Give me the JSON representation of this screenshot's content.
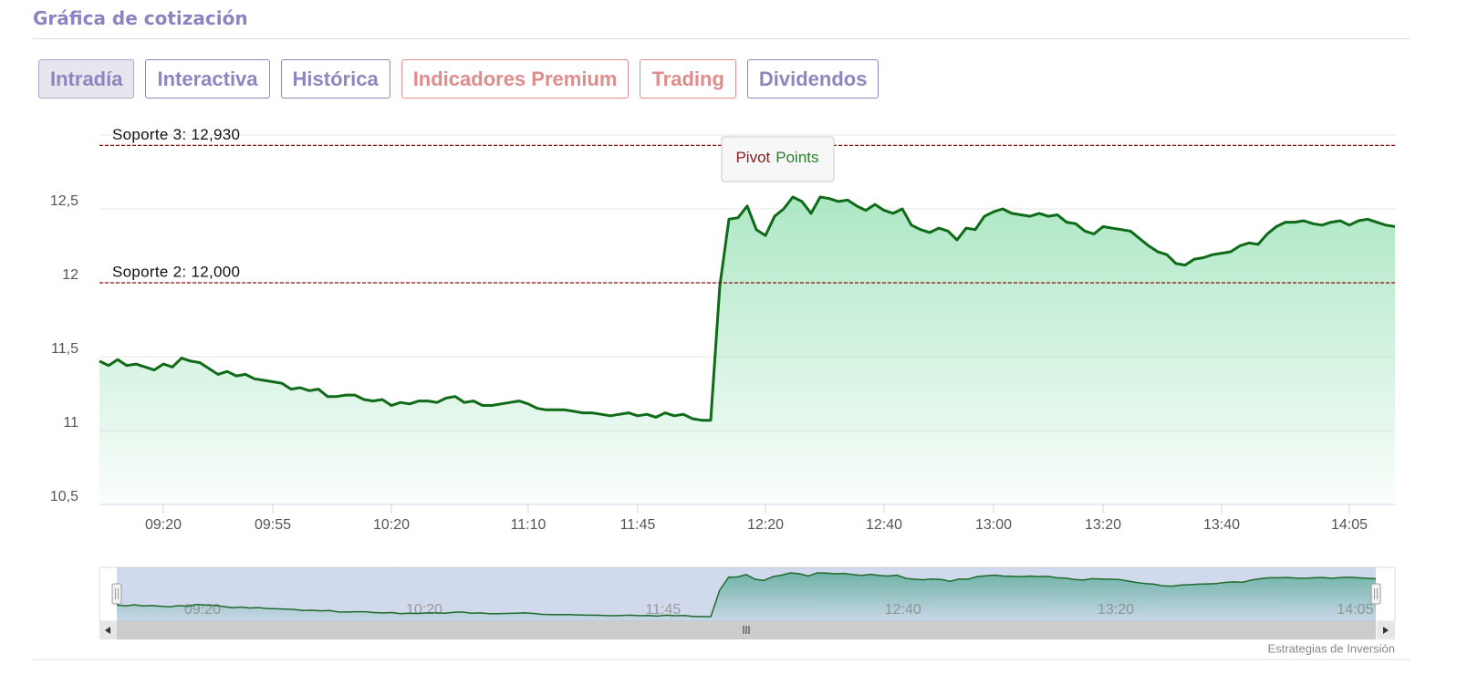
{
  "header": {
    "title": "Gráfica de cotización"
  },
  "tabs": [
    {
      "label": "Intradía",
      "color": "#8f86bf",
      "active": true
    },
    {
      "label": "Interactiva",
      "color": "#8f86bf",
      "active": false
    },
    {
      "label": "Histórica",
      "color": "#8f86bf",
      "active": false
    },
    {
      "label": "Indicadores Premium",
      "color": "#e08c8c",
      "active": false
    },
    {
      "label": "Trading",
      "color": "#e08c8c",
      "active": false
    },
    {
      "label": "Dividendos",
      "color": "#8f86bf",
      "active": false
    }
  ],
  "chart_data": {
    "type": "area",
    "categories": [
      null,
      null,
      null,
      null,
      null,
      null,
      null,
      "09:20",
      null,
      null,
      null,
      null,
      null,
      null,
      null,
      null,
      null,
      null,
      null,
      "09:55",
      null,
      null,
      null,
      null,
      null,
      null,
      null,
      null,
      null,
      null,
      null,
      null,
      "10:20",
      null,
      null,
      null,
      null,
      null,
      null,
      null,
      null,
      null,
      null,
      null,
      null,
      null,
      null,
      "11:10",
      null,
      null,
      null,
      null,
      null,
      null,
      null,
      null,
      null,
      null,
      null,
      "11:45",
      null,
      null,
      null,
      null,
      null,
      null,
      null,
      null,
      null,
      null,
      null,
      null,
      null,
      "12:20",
      null,
      null,
      null,
      null,
      null,
      null,
      null,
      null,
      null,
      null,
      null,
      null,
      "12:40",
      null,
      null,
      null,
      null,
      null,
      null,
      null,
      null,
      null,
      null,
      null,
      "13:00",
      null,
      null,
      null,
      null,
      null,
      null,
      null,
      null,
      null,
      null,
      null,
      "13:20",
      null,
      null,
      null,
      null,
      null,
      null,
      null,
      null,
      null,
      null,
      null,
      null,
      "13:40",
      null,
      null,
      null,
      null,
      null,
      null,
      null,
      null,
      null,
      null,
      null,
      null,
      null,
      "14:05",
      null,
      null,
      null,
      null,
      null
    ],
    "values": [
      11.47,
      11.44,
      11.48,
      11.44,
      11.45,
      11.43,
      11.41,
      11.45,
      11.43,
      11.49,
      11.47,
      11.46,
      11.42,
      11.38,
      11.4,
      11.37,
      11.38,
      11.35,
      11.34,
      11.33,
      11.32,
      11.28,
      11.29,
      11.27,
      11.28,
      11.23,
      11.23,
      11.24,
      11.24,
      11.21,
      11.2,
      11.21,
      11.17,
      11.19,
      11.18,
      11.2,
      11.2,
      11.19,
      11.22,
      11.23,
      11.19,
      11.2,
      11.17,
      11.17,
      11.18,
      11.19,
      11.2,
      11.18,
      11.15,
      11.14,
      11.14,
      11.14,
      11.13,
      11.12,
      11.12,
      11.11,
      11.1,
      11.11,
      11.12,
      11.1,
      11.11,
      11.09,
      11.12,
      11.1,
      11.11,
      11.08,
      11.07,
      11.07,
      11.98,
      12.43,
      12.44,
      12.52,
      12.36,
      12.32,
      12.45,
      12.5,
      12.58,
      12.55,
      12.47,
      12.58,
      12.57,
      12.55,
      12.56,
      12.52,
      12.49,
      12.53,
      12.49,
      12.47,
      12.5,
      12.39,
      12.36,
      12.34,
      12.37,
      12.35,
      12.29,
      12.37,
      12.36,
      12.45,
      12.48,
      12.5,
      12.47,
      12.46,
      12.45,
      12.47,
      12.45,
      12.46,
      12.41,
      12.4,
      12.35,
      12.33,
      12.38,
      12.37,
      12.36,
      12.35,
      12.3,
      12.25,
      12.21,
      12.19,
      12.13,
      12.12,
      12.16,
      12.17,
      12.19,
      12.2,
      12.21,
      12.25,
      12.27,
      12.26,
      12.33,
      12.38,
      12.41,
      12.41,
      12.42,
      12.4,
      12.39,
      12.41,
      12.42,
      12.39,
      12.42,
      12.43,
      12.41,
      12.39,
      12.38
    ],
    "color": "#0f6b17",
    "fill_color": "#9fe3bb",
    "ylim": [
      10.5,
      13
    ],
    "yticks": [
      {
        "value": 10.5,
        "label": "10,5"
      },
      11,
      {
        "value": 11.5,
        "label": "11,5"
      },
      12,
      {
        "value": 12.5,
        "label": "12,5"
      }
    ],
    "grid": true,
    "pivot_lines": [
      {
        "label": "Soporte 3: 12,930",
        "value": 12.93
      },
      {
        "label": "Soporte 2: 12,000",
        "value": 12.0
      }
    ],
    "pivot_color": "#8b1010",
    "pivot_legend": [
      {
        "label": "Pivot",
        "color": "#8b1a1a"
      },
      {
        "label": "Points",
        "color": "#2e7d2e"
      }
    ],
    "navigator_labels": [
      7,
      32,
      59,
      86,
      110,
      137
    ]
  },
  "footer": {
    "credit": "Estrategias de Inversión"
  }
}
